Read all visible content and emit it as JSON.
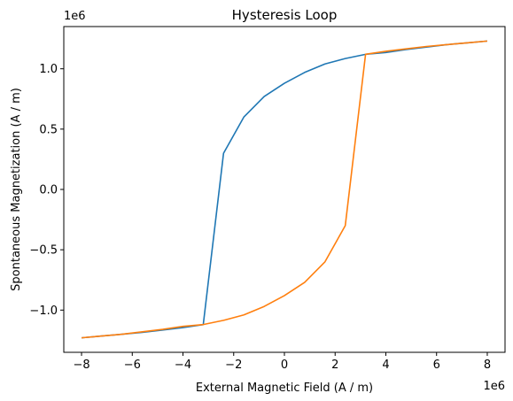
{
  "chart_data": {
    "type": "line",
    "title": "Hysteresis Loop",
    "xlabel": "External Magnetic Field (A / m)",
    "ylabel": "Spontaneous Magnetization (A / m)",
    "x_offset_label": "1e6",
    "y_offset_label": "1e6",
    "xlim": [
      -8.7,
      8.7
    ],
    "ylim": [
      -1.35,
      1.35
    ],
    "x_ticks": [
      -8,
      -6,
      -4,
      -2,
      0,
      2,
      4,
      6,
      8
    ],
    "x_tick_labels": [
      "−8",
      "−6",
      "−4",
      "−2",
      "0",
      "2",
      "4",
      "6",
      "8"
    ],
    "y_ticks": [
      -1.0,
      -0.5,
      0.0,
      0.5,
      1.0
    ],
    "y_tick_labels": [
      "−1.0",
      "−0.5",
      "0.0",
      "0.5",
      "1.0"
    ],
    "grid": false,
    "series": [
      {
        "color": "#1f77b4",
        "x": [
          8.0,
          7.2,
          6.4,
          5.6,
          4.8,
          4.0,
          3.2,
          2.4,
          1.6,
          0.8,
          0.0,
          -0.8,
          -1.6,
          -2.4,
          -3.2,
          -4.0,
          -4.8,
          -5.6,
          -6.4,
          -7.2,
          -8.0
        ],
        "y": [
          1.23,
          1.215,
          1.2,
          1.18,
          1.16,
          1.135,
          1.12,
          1.085,
          1.04,
          0.97,
          0.88,
          0.77,
          0.6,
          0.3,
          -1.12,
          -1.145,
          -1.165,
          -1.185,
          -1.2,
          -1.215,
          -1.23
        ]
      },
      {
        "color": "#ff7f0e",
        "x": [
          -8.0,
          -7.2,
          -6.4,
          -5.6,
          -4.8,
          -4.0,
          -3.2,
          -2.4,
          -1.6,
          -0.8,
          0.0,
          0.8,
          1.6,
          2.4,
          3.2,
          4.0,
          4.8,
          5.6,
          6.4,
          7.2,
          8.0
        ],
        "y": [
          -1.23,
          -1.215,
          -1.2,
          -1.18,
          -1.16,
          -1.135,
          -1.12,
          -1.085,
          -1.04,
          -0.97,
          -0.88,
          -0.77,
          -0.6,
          -0.3,
          1.12,
          1.145,
          1.165,
          1.185,
          1.2,
          1.215,
          1.23
        ]
      }
    ]
  }
}
